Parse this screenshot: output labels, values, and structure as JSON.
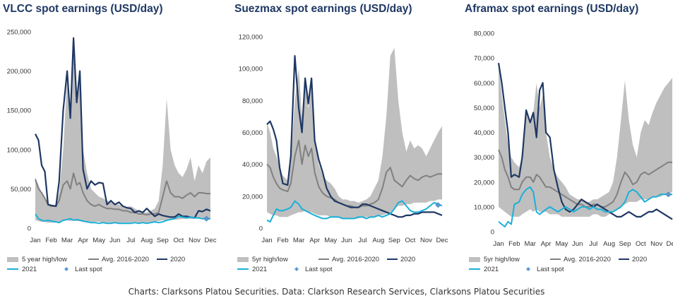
{
  "footer": "Charts: Clarksons Platou Securities. Data: Clarkson Research Services, Clarksons Platou Securities",
  "colors": {
    "band": "#bfbfbf",
    "avg": "#808080",
    "y2020": "#1f3864",
    "y2021": "#1ab0d8",
    "last": "#5b9bd5"
  },
  "chart_data": [
    {
      "type": "line",
      "title": "VLCC spot earnings (USD/day)",
      "ylim": [
        0,
        250000
      ],
      "yticks": [
        "0",
        "50,000",
        "100,000",
        "150,000",
        "200,000",
        "250,000"
      ],
      "xticks": [
        "Jan",
        "Feb",
        "Mar",
        "Apr",
        "May",
        "Jun",
        "Jul",
        "Aug",
        "Sep",
        "Oct",
        "Nov",
        "Dec"
      ],
      "legend": [
        "5 year high/low",
        "Avg. 2016-2020",
        "2020",
        "2021",
        "Last spot"
      ],
      "x": [
        1.0,
        1.2,
        1.4,
        1.6,
        1.8,
        2.0,
        2.3,
        2.5,
        2.75,
        3.0,
        3.2,
        3.4,
        3.6,
        3.8,
        4.0,
        4.25,
        4.5,
        4.75,
        5.0,
        5.25,
        5.5,
        5.75,
        6.0,
        6.25,
        6.5,
        6.75,
        7.0,
        7.25,
        7.5,
        7.75,
        8.0,
        8.25,
        8.5,
        8.75,
        9.0,
        9.25,
        9.5,
        9.75,
        10.0,
        10.25,
        10.5,
        10.75,
        11.0,
        11.25,
        11.5,
        11.75,
        12.0
      ],
      "band_high": [
        65000,
        55000,
        45000,
        40000,
        30000,
        28000,
        30000,
        45000,
        100000,
        190000,
        140000,
        230000,
        160000,
        200000,
        100000,
        70000,
        50000,
        45000,
        40000,
        38000,
        35000,
        33000,
        32000,
        30000,
        28000,
        27000,
        28000,
        25000,
        22000,
        20000,
        20000,
        22000,
        25000,
        35000,
        80000,
        165000,
        100000,
        80000,
        70000,
        65000,
        75000,
        90000,
        60000,
        80000,
        70000,
        85000,
        90000
      ],
      "band_low": [
        10000,
        9000,
        8000,
        8000,
        7000,
        7000,
        7000,
        8000,
        9000,
        10000,
        9000,
        10000,
        9000,
        9000,
        8000,
        8000,
        8000,
        8000,
        8000,
        7000,
        7000,
        7000,
        7000,
        7000,
        7000,
        7000,
        7000,
        8000,
        7000,
        7000,
        7000,
        8000,
        8000,
        9000,
        10000,
        10000,
        11000,
        11000,
        11000,
        12000,
        12000,
        12000,
        12000,
        12000,
        12000,
        12000,
        12000
      ],
      "series": [
        {
          "name": "Avg. 2016-2020",
          "values": [
            62000,
            50000,
            45000,
            38000,
            30000,
            28000,
            28000,
            35000,
            55000,
            60000,
            50000,
            70000,
            55000,
            58000,
            45000,
            35000,
            30000,
            28000,
            30000,
            27000,
            25000,
            25000,
            24000,
            24000,
            22000,
            22000,
            20000,
            20000,
            18000,
            18000,
            17000,
            18000,
            18000,
            20000,
            40000,
            60000,
            45000,
            40000,
            40000,
            38000,
            42000,
            45000,
            40000,
            45000,
            45000,
            44000,
            44000
          ]
        },
        {
          "name": "2020",
          "values": [
            120000,
            112000,
            80000,
            72000,
            30000,
            29000,
            28000,
            60000,
            150000,
            200000,
            140000,
            242000,
            160000,
            200000,
            75000,
            50000,
            60000,
            55000,
            58000,
            57000,
            30000,
            35000,
            30000,
            33000,
            28000,
            26000,
            25000,
            20000,
            22000,
            20000,
            25000,
            20000,
            15000,
            18000,
            16000,
            15000,
            14000,
            14000,
            18000,
            15000,
            15000,
            14000,
            13000,
            22000,
            21000,
            24000,
            22000
          ]
        },
        {
          "name": "2021",
          "values": [
            18000,
            12000,
            10000,
            9000,
            10000,
            9000,
            8000,
            7000,
            10000,
            11000,
            12000,
            10000,
            11000,
            10000,
            9000,
            8000,
            7000,
            7000,
            6000,
            7000,
            6000,
            6000,
            7000,
            6000,
            6000,
            6000,
            6000,
            7000,
            6000,
            7000,
            6000,
            7000,
            8000,
            7000,
            8000,
            10000,
            11000,
            12000,
            15000,
            14000,
            13000,
            14000,
            13000,
            13000,
            12000,
            12000,
            12000
          ]
        }
      ],
      "last_spot": {
        "x": 11.75,
        "y": 12000
      }
    },
    {
      "type": "line",
      "title": "Suezmax spot earnings (USD/day)",
      "ylim": [
        0,
        120000
      ],
      "yticks": [
        "0",
        "20,000",
        "40,000",
        "60,000",
        "80,000",
        "100,000",
        "120,000"
      ],
      "xticks": [
        "Jan",
        "Feb",
        "Mar",
        "Apr",
        "May",
        "Jun",
        "Jul",
        "Aug",
        "Sep",
        "Oct",
        "Nov",
        "Dec"
      ],
      "legend": [
        "5yr high/low",
        "Avg. 2016-2020",
        "2020",
        "2021",
        "Last spot"
      ],
      "x": [
        1.0,
        1.2,
        1.4,
        1.6,
        1.8,
        2.0,
        2.3,
        2.5,
        2.75,
        3.0,
        3.2,
        3.4,
        3.6,
        3.8,
        4.0,
        4.25,
        4.5,
        4.75,
        5.0,
        5.25,
        5.5,
        5.75,
        6.0,
        6.25,
        6.5,
        6.75,
        7.0,
        7.25,
        7.5,
        7.75,
        8.0,
        8.25,
        8.5,
        8.75,
        9.0,
        9.25,
        9.5,
        9.75,
        10.0,
        10.25,
        10.5,
        10.75,
        11.0,
        11.25,
        11.5,
        11.75,
        12.0
      ],
      "band_high": [
        66000,
        60000,
        50000,
        45000,
        38000,
        33000,
        30000,
        40000,
        80000,
        100000,
        70000,
        95000,
        75000,
        90000,
        55000,
        40000,
        33000,
        30000,
        28000,
        25000,
        20000,
        18000,
        18000,
        17000,
        17000,
        16000,
        17000,
        18000,
        20000,
        25000,
        30000,
        45000,
        70000,
        108000,
        113000,
        80000,
        60000,
        48000,
        55000,
        50000,
        52000,
        50000,
        45000,
        50000,
        55000,
        60000,
        64000
      ],
      "band_low": [
        10000,
        9000,
        8000,
        8000,
        7000,
        7000,
        7000,
        8000,
        9000,
        10000,
        10000,
        11000,
        10000,
        10000,
        9000,
        8000,
        8000,
        8000,
        7000,
        7000,
        7000,
        6000,
        6000,
        6000,
        6000,
        6000,
        7000,
        7000,
        7000,
        7000,
        8000,
        8000,
        9000,
        10000,
        12000,
        14000,
        14000,
        15000,
        15000,
        16000,
        16000,
        16000,
        16000,
        17000,
        17000,
        18000,
        18000
      ],
      "series": [
        {
          "name": "Avg. 2016-2020",
          "values": [
            40000,
            38000,
            32000,
            28000,
            25000,
            24000,
            23000,
            28000,
            45000,
            55000,
            40000,
            52000,
            45000,
            50000,
            35000,
            26000,
            22000,
            20000,
            19000,
            18000,
            16000,
            15000,
            14000,
            14000,
            13000,
            13000,
            14000,
            14000,
            15000,
            16000,
            18000,
            25000,
            35000,
            38000,
            30000,
            28000,
            26000,
            30000,
            33000,
            31000,
            30000,
            32000,
            33000,
            32000,
            33000,
            34000,
            34000
          ]
        },
        {
          "name": "2020",
          "values": [
            65000,
            67000,
            62000,
            55000,
            38000,
            28000,
            27000,
            45000,
            108000,
            75000,
            60000,
            94000,
            78000,
            94000,
            55000,
            43000,
            35000,
            25000,
            20000,
            17000,
            16000,
            15000,
            14000,
            13000,
            13000,
            13000,
            15000,
            15000,
            14000,
            13000,
            12000,
            11000,
            10000,
            9000,
            8000,
            7000,
            7000,
            8000,
            8000,
            9000,
            9000,
            10000,
            10000,
            10000,
            10000,
            9000,
            8000
          ]
        },
        {
          "name": "2021",
          "values": [
            5000,
            4000,
            8000,
            12000,
            11000,
            11000,
            12000,
            13000,
            17000,
            15000,
            12000,
            11000,
            10000,
            9000,
            8000,
            7000,
            6000,
            6000,
            7000,
            7000,
            7000,
            6000,
            6000,
            6000,
            6000,
            7000,
            7000,
            6000,
            7000,
            7000,
            8000,
            7000,
            8000,
            9000,
            12000,
            16000,
            17000,
            14000,
            11000,
            10000,
            10000,
            11000,
            12000,
            14000,
            16000,
            15000,
            14000
          ]
        }
      ],
      "last_spot": {
        "x": 11.75,
        "y": 14500
      }
    },
    {
      "type": "line",
      "title": "Aframax spot earnings (USD/day)",
      "ylim": [
        0,
        80000
      ],
      "yticks": [
        "0",
        "10,000",
        "20,000",
        "30,000",
        "40,000",
        "50,000",
        "60,000",
        "70,000",
        "80,000"
      ],
      "xticks": [
        "Jan",
        "Feb",
        "Mar",
        "Apr",
        "May",
        "Jun",
        "Jul",
        "Aug",
        "Sep",
        "Oct",
        "Nov",
        "Dec"
      ],
      "legend": [
        "5yr high/low",
        "Avg. 2016-2020",
        "2020",
        "2021",
        "Last spot"
      ],
      "x": [
        1.0,
        1.2,
        1.4,
        1.6,
        1.8,
        2.0,
        2.3,
        2.5,
        2.75,
        3.0,
        3.2,
        3.4,
        3.6,
        3.8,
        4.0,
        4.25,
        4.5,
        4.75,
        5.0,
        5.25,
        5.5,
        5.75,
        6.0,
        6.25,
        6.5,
        6.75,
        7.0,
        7.25,
        7.5,
        7.75,
        8.0,
        8.25,
        8.5,
        8.75,
        9.0,
        9.25,
        9.5,
        9.75,
        10.0,
        10.25,
        10.5,
        10.75,
        11.0,
        11.25,
        11.5,
        11.75,
        12.0
      ],
      "band_high": [
        68000,
        55000,
        45000,
        35000,
        30000,
        28000,
        26000,
        30000,
        48000,
        45000,
        48000,
        60000,
        50000,
        55000,
        40000,
        30000,
        25000,
        22000,
        20000,
        18000,
        15000,
        14000,
        13000,
        13000,
        12000,
        12000,
        13000,
        13000,
        14000,
        15000,
        16000,
        20000,
        30000,
        45000,
        61000,
        45000,
        35000,
        30000,
        40000,
        45000,
        43000,
        48000,
        52000,
        55000,
        58000,
        60000,
        62000
      ],
      "band_low": [
        10000,
        9000,
        8000,
        7000,
        6000,
        6000,
        6000,
        7000,
        8000,
        9000,
        8000,
        9000,
        8000,
        8000,
        8000,
        7000,
        7000,
        7000,
        6000,
        6000,
        6000,
        6000,
        6000,
        6000,
        6000,
        6000,
        7000,
        7000,
        6000,
        6000,
        7000,
        8000,
        9000,
        10000,
        11000,
        12000,
        12000,
        12000,
        13000,
        13000,
        13000,
        14000,
        14000,
        14000,
        15000,
        15000,
        16000
      ],
      "series": [
        {
          "name": "Avg. 2016-2020",
          "values": [
            33000,
            30000,
            25000,
            22000,
            18000,
            17000,
            17000,
            20000,
            22000,
            22000,
            20000,
            23000,
            22000,
            20000,
            18000,
            18000,
            17000,
            16000,
            15000,
            14000,
            13000,
            12000,
            11000,
            11000,
            10000,
            10000,
            11000,
            11000,
            10000,
            10000,
            11000,
            12000,
            15000,
            20000,
            24000,
            22000,
            19000,
            20000,
            23000,
            24000,
            23000,
            24000,
            25000,
            26000,
            27000,
            28000,
            28000
          ]
        },
        {
          "name": "2020",
          "values": [
            68000,
            60000,
            50000,
            40000,
            22000,
            23000,
            22000,
            30000,
            49000,
            44000,
            48000,
            38000,
            57000,
            60000,
            40000,
            38000,
            25000,
            18000,
            12000,
            9000,
            8000,
            9000,
            11000,
            13000,
            12000,
            11000,
            10000,
            11000,
            10000,
            9000,
            8000,
            7000,
            6000,
            6000,
            7000,
            8000,
            7000,
            6000,
            6000,
            7000,
            8000,
            8000,
            9000,
            8000,
            7000,
            6000,
            5000
          ]
        },
        {
          "name": "2021",
          "values": [
            4000,
            3000,
            2000,
            4000,
            3000,
            11000,
            12000,
            15000,
            17000,
            18000,
            16000,
            8000,
            7000,
            8000,
            9000,
            10000,
            9000,
            8000,
            9000,
            10000,
            9000,
            8000,
            9000,
            10000,
            10000,
            9000,
            10000,
            9000,
            9000,
            8000,
            8000,
            8000,
            9000,
            10000,
            12000,
            16000,
            17000,
            16000,
            14000,
            12000,
            13000,
            14000,
            14000,
            15000,
            15000,
            15000,
            15000
          ]
        }
      ],
      "last_spot": {
        "x": 11.75,
        "y": 15000
      }
    }
  ]
}
